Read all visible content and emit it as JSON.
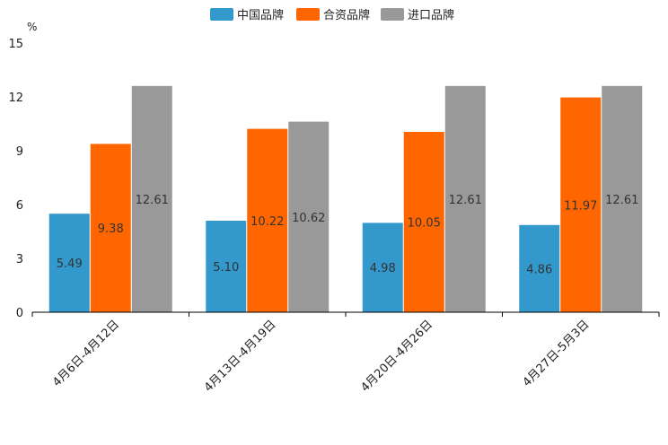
{
  "chart_data": {
    "type": "bar",
    "title": "",
    "xlabel": "",
    "ylabel": "%",
    "ylim": [
      0,
      15
    ],
    "yticks": [
      0,
      3,
      6,
      9,
      12,
      15
    ],
    "grid": false,
    "legend_position": "top-center",
    "categories": [
      "4月6日-4月12日",
      "4月13日-4月19日",
      "4月20日-4月26日",
      "4月27日-5月3日"
    ],
    "series": [
      {
        "name": "中国品牌",
        "color": "#3399cc",
        "values": [
          5.49,
          5.1,
          4.98,
          4.86
        ],
        "labels": [
          "5.49",
          "5.10",
          "4.98",
          "4.86"
        ]
      },
      {
        "name": "合资品牌",
        "color": "#ff6600",
        "values": [
          9.38,
          10.22,
          10.05,
          11.97
        ],
        "labels": [
          "9.38",
          "10.22",
          "10.05",
          "11.97"
        ]
      },
      {
        "name": "进口品牌",
        "color": "#999999",
        "values": [
          12.61,
          10.62,
          12.61,
          12.61
        ],
        "labels": [
          "12.61",
          "10.62",
          "12.61",
          "12.61"
        ]
      }
    ]
  }
}
